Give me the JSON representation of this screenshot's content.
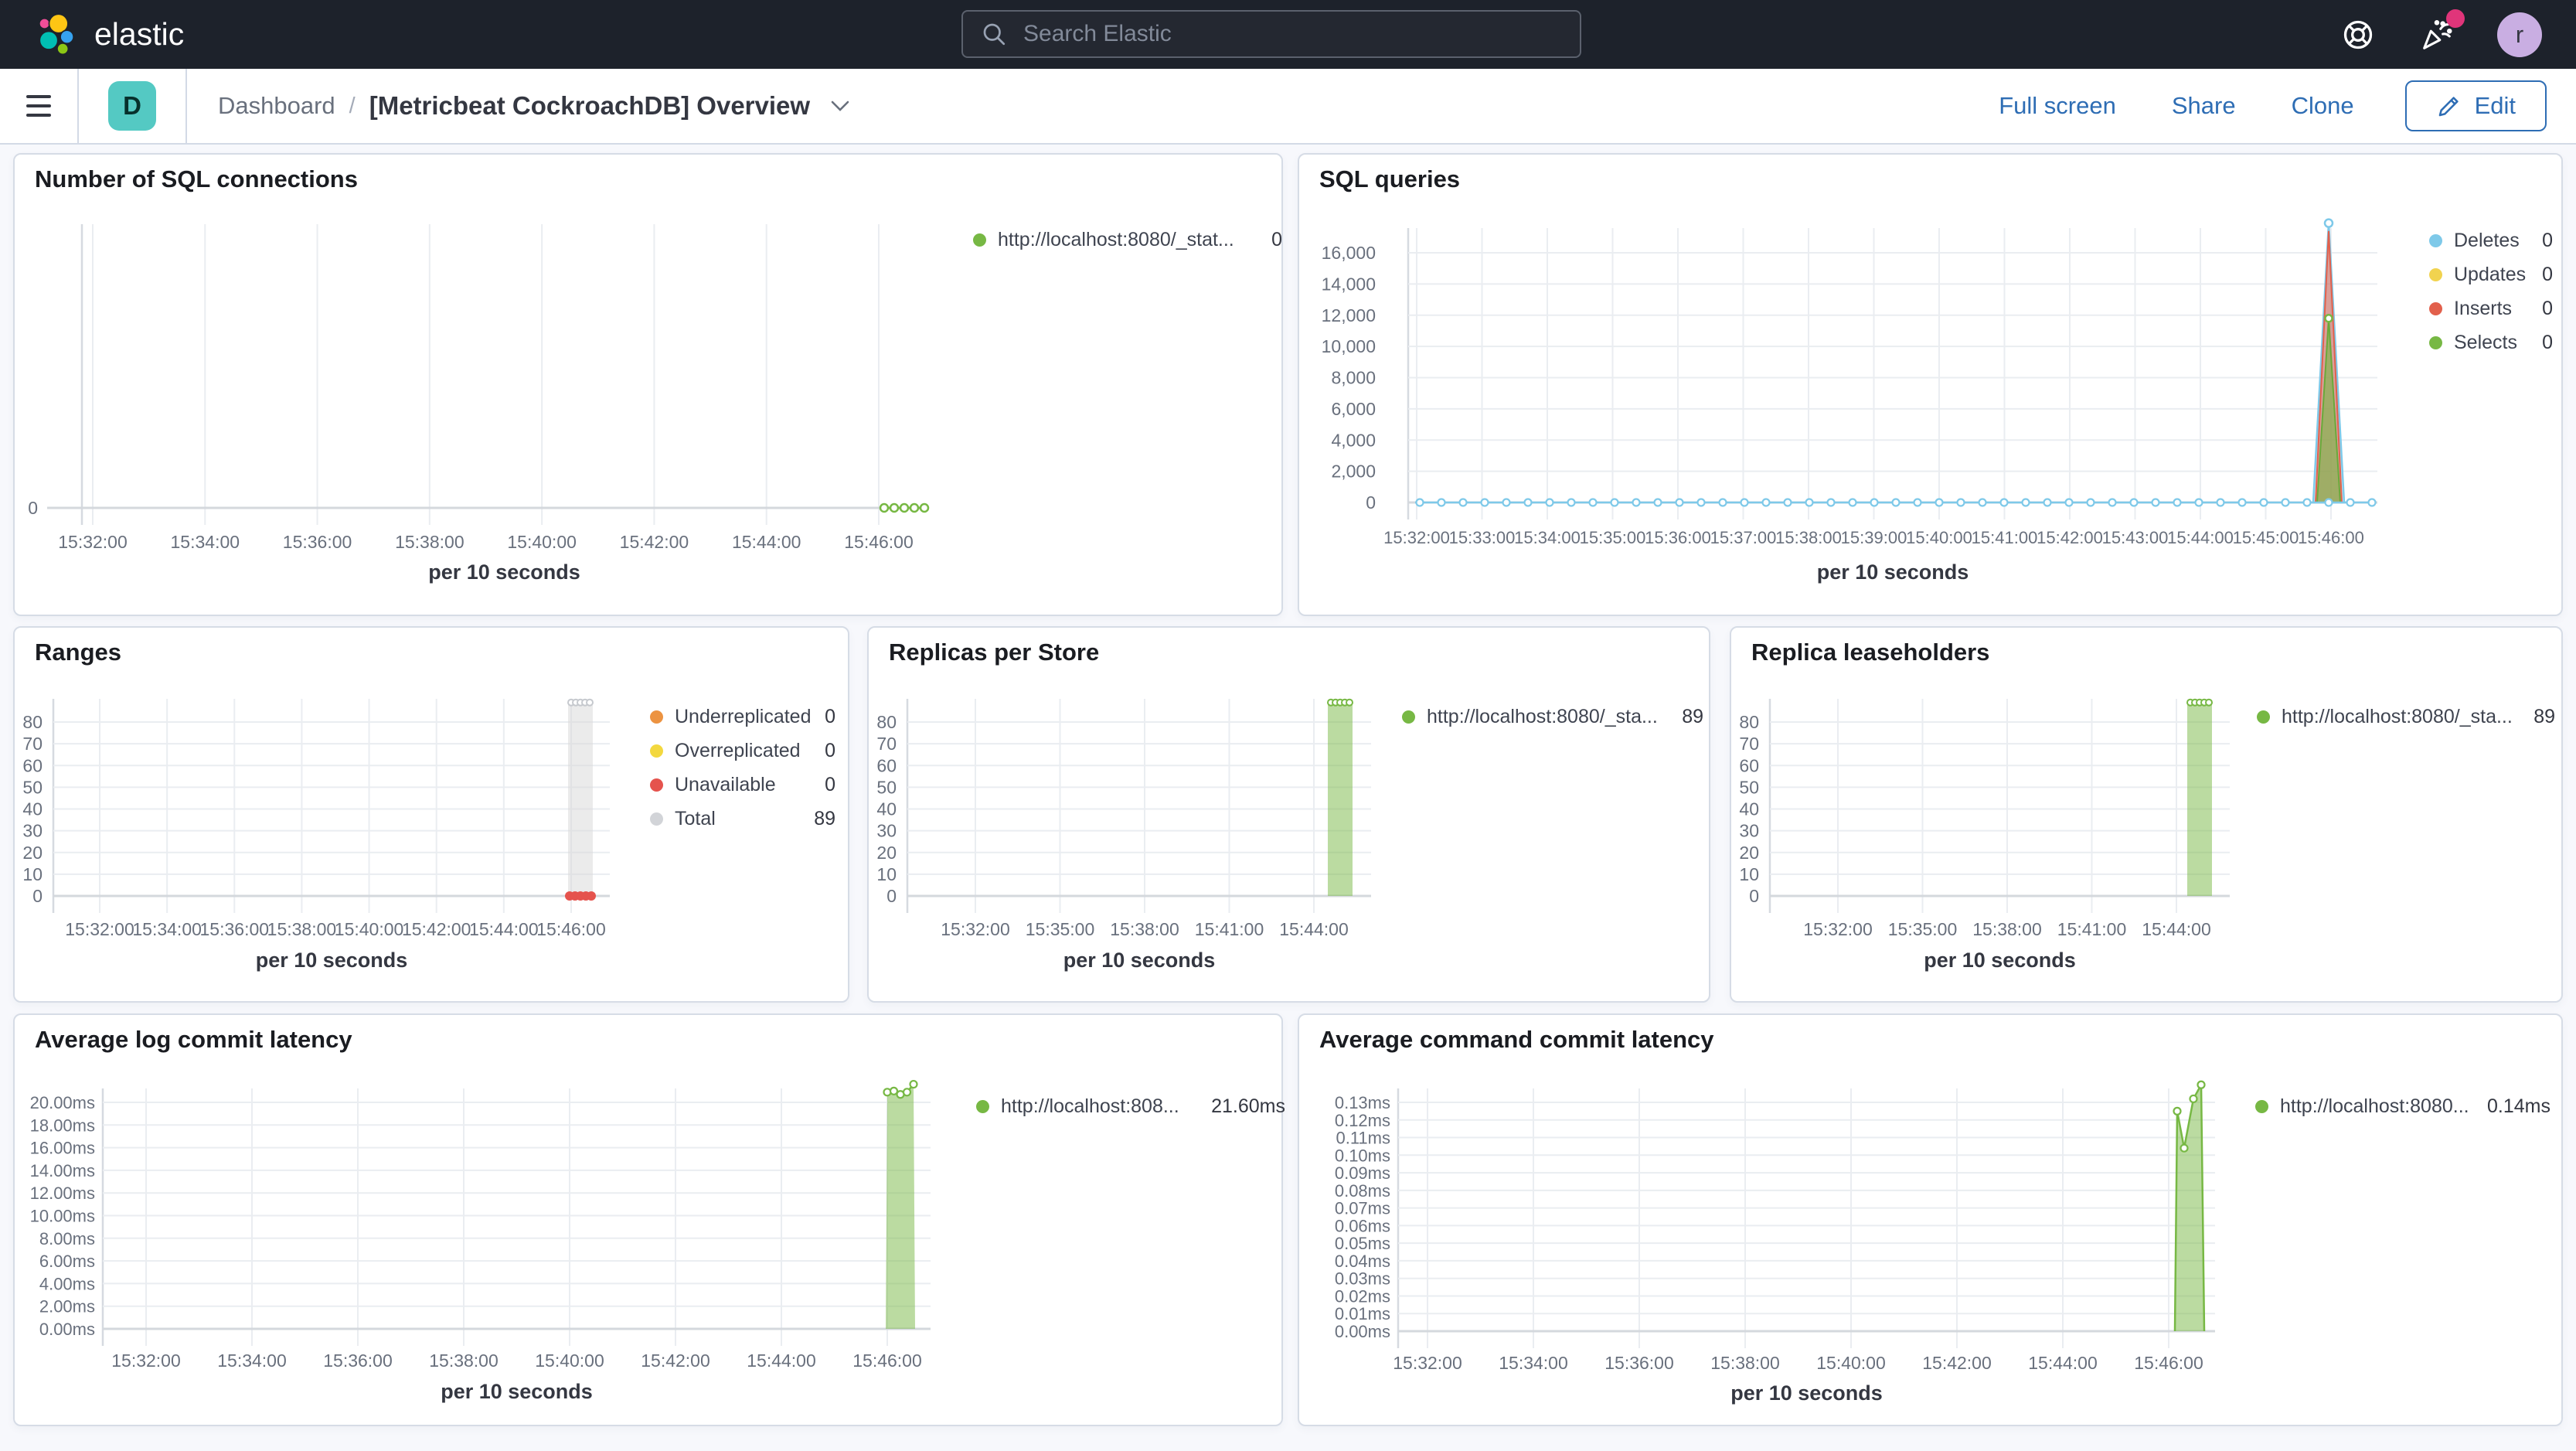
{
  "header": {
    "logo": "elastic",
    "search_placeholder": "Search Elastic",
    "avatar_initial": "r"
  },
  "toolbar": {
    "space_badge": "D",
    "breadcrumb": "Dashboard",
    "separator": "/",
    "title": "[Metricbeat CockroachDB] Overview",
    "full_screen": "Full screen",
    "share": "Share",
    "clone": "Clone",
    "edit": "Edit"
  },
  "colors": {
    "header_bg": "#1d222b",
    "accent_blue": "#2e6db4",
    "badge_teal": "#54c9c3",
    "avatar_purple": "#c9aee2",
    "notification_pink": "#e0357a",
    "green": "#77b844",
    "light_blue": "#7ec9e9",
    "yellow": "#f1d34f",
    "red": "#e2604c",
    "orange": "#ec9341",
    "unavailable_red": "#e5534d",
    "gray": "#d8d8d8",
    "panel_border": "#d3dae6"
  },
  "chart_data": [
    {
      "type": "line",
      "title": "Number of SQL connections",
      "xlabel": "per 10 seconds",
      "x_ticks": [
        "15:32:00",
        "15:34:00",
        "15:36:00",
        "15:38:00",
        "15:40:00",
        "15:42:00",
        "15:44:00",
        "15:46:00"
      ],
      "y_ticks": [
        "0"
      ],
      "ymax": 1,
      "series": [
        {
          "name": "http://localhost:8080/_stat...",
          "color": "#77b844",
          "value": 0,
          "visible_range": [
            "15:45:40",
            "15:46:20"
          ]
        }
      ],
      "legend": [
        {
          "label": "http://localhost:8080/_stat...",
          "value": "0",
          "color": "#77b844"
        }
      ]
    },
    {
      "type": "area",
      "title": "SQL queries",
      "xlabel": "per 10 seconds",
      "x_ticks": [
        "15:32:00",
        "15:33:00",
        "15:34:00",
        "15:35:00",
        "15:36:00",
        "15:37:00",
        "15:38:00",
        "15:39:00",
        "15:40:00",
        "15:41:00",
        "15:42:00",
        "15:43:00",
        "15:44:00",
        "15:45:00",
        "15:46:00"
      ],
      "y_ticks": [
        "0",
        "2,000",
        "4,000",
        "6,000",
        "8,000",
        "10,000",
        "12,000",
        "14,000",
        "16,000"
      ],
      "ymax": 16000,
      "spike_time": "15:46:00",
      "series": [
        {
          "name": "Deletes",
          "color": "#7ec9e9",
          "value": 0,
          "peak": 17900
        },
        {
          "name": "Updates",
          "color": "#f1d34f",
          "value": 0,
          "peak": 0
        },
        {
          "name": "Inserts",
          "color": "#e2604c",
          "value": 0,
          "peak": 17400
        },
        {
          "name": "Selects",
          "color": "#77b844",
          "value": 0,
          "peak": 11800
        }
      ],
      "legend": [
        {
          "label": "Deletes",
          "value": "0",
          "color": "#7ec9e9"
        },
        {
          "label": "Updates",
          "value": "0",
          "color": "#f1d34f"
        },
        {
          "label": "Inserts",
          "value": "0",
          "color": "#e2604c"
        },
        {
          "label": "Selects",
          "value": "0",
          "color": "#77b844"
        }
      ]
    },
    {
      "type": "bar",
      "title": "Ranges",
      "xlabel": "per 10 seconds",
      "x_ticks": [
        "15:32:00",
        "15:34:00",
        "15:36:00",
        "15:38:00",
        "15:40:00",
        "15:42:00",
        "15:44:00",
        "15:46:00"
      ],
      "y_ticks": [
        "0",
        "10",
        "20",
        "30",
        "40",
        "50",
        "60",
        "70",
        "80"
      ],
      "ymax": 80,
      "bar_time": "15:46:00",
      "series": [
        {
          "name": "Underreplicated",
          "color": "#ec9341",
          "value": 0
        },
        {
          "name": "Overreplicated",
          "color": "#f3d83f",
          "value": 0
        },
        {
          "name": "Unavailable",
          "color": "#e5534d",
          "value": 0
        },
        {
          "name": "Total",
          "color": "#d8d8d8",
          "value": 89
        }
      ],
      "legend": [
        {
          "label": "Underreplicated",
          "value": "0",
          "color": "#ec9341"
        },
        {
          "label": "Overreplicated",
          "value": "0",
          "color": "#f3d83f"
        },
        {
          "label": "Unavailable",
          "value": "0",
          "color": "#e5534d"
        },
        {
          "label": "Total",
          "value": "89",
          "color": "#d2d4d8"
        }
      ]
    },
    {
      "type": "bar",
      "title": "Replicas per Store",
      "xlabel": "per 10 seconds",
      "x_ticks": [
        "15:32:00",
        "15:35:00",
        "15:38:00",
        "15:41:00",
        "15:44:00"
      ],
      "y_ticks": [
        "0",
        "10",
        "20",
        "30",
        "40",
        "50",
        "60",
        "70",
        "80"
      ],
      "ymax": 80,
      "bar_time": "15:46:00",
      "series": [
        {
          "name": "http://localhost:8080/_sta...",
          "color": "#77b844",
          "value": 89
        }
      ],
      "legend": [
        {
          "label": "http://localhost:8080/_sta...",
          "value": "89",
          "color": "#77b844"
        }
      ]
    },
    {
      "type": "bar",
      "title": "Replica leaseholders",
      "xlabel": "per 10 seconds",
      "x_ticks": [
        "15:32:00",
        "15:35:00",
        "15:38:00",
        "15:41:00",
        "15:44:00"
      ],
      "y_ticks": [
        "0",
        "10",
        "20",
        "30",
        "40",
        "50",
        "60",
        "70",
        "80"
      ],
      "ymax": 80,
      "bar_time": "15:46:00",
      "series": [
        {
          "name": "http://localhost:8080/_sta...",
          "color": "#77b844",
          "value": 89
        }
      ],
      "legend": [
        {
          "label": "http://localhost:8080/_sta...",
          "value": "89",
          "color": "#77b844"
        }
      ]
    },
    {
      "type": "bar",
      "title": "Average log commit latency",
      "xlabel": "per 10 seconds",
      "x_ticks": [
        "15:32:00",
        "15:34:00",
        "15:36:00",
        "15:38:00",
        "15:40:00",
        "15:42:00",
        "15:44:00",
        "15:46:00"
      ],
      "y_ticks": [
        "0.00ms",
        "2.00ms",
        "4.00ms",
        "6.00ms",
        "8.00ms",
        "10.00ms",
        "12.00ms",
        "14.00ms",
        "16.00ms",
        "18.00ms",
        "20.00ms"
      ],
      "ymax": 20,
      "bar_time": "15:46:00",
      "series": [
        {
          "name": "http://localhost:808...",
          "color": "#77b844",
          "value": "21.60ms",
          "top_points_ms": [
            20.9,
            21.0,
            20.7,
            20.9,
            21.6
          ]
        }
      ],
      "legend": [
        {
          "label": "http://localhost:808...",
          "value": "21.60ms",
          "color": "#77b844"
        }
      ]
    },
    {
      "type": "area",
      "title": "Average command commit latency",
      "xlabel": "per 10 seconds",
      "x_ticks": [
        "15:32:00",
        "15:34:00",
        "15:36:00",
        "15:38:00",
        "15:40:00",
        "15:42:00",
        "15:44:00",
        "15:46:00"
      ],
      "y_ticks": [
        "0.00ms",
        "0.01ms",
        "0.02ms",
        "0.03ms",
        "0.04ms",
        "0.05ms",
        "0.06ms",
        "0.07ms",
        "0.08ms",
        "0.09ms",
        "0.10ms",
        "0.11ms",
        "0.12ms",
        "0.13ms"
      ],
      "ymax": 0.13,
      "spike_time": "15:46:00",
      "series": [
        {
          "name": "http://localhost:8080...",
          "color": "#77b844",
          "value": "0.14ms",
          "points_ms": [
            0.125,
            0.104,
            0.132,
            0.14
          ]
        }
      ],
      "legend": [
        {
          "label": "http://localhost:8080...",
          "value": "0.14ms",
          "color": "#77b844"
        }
      ]
    }
  ]
}
